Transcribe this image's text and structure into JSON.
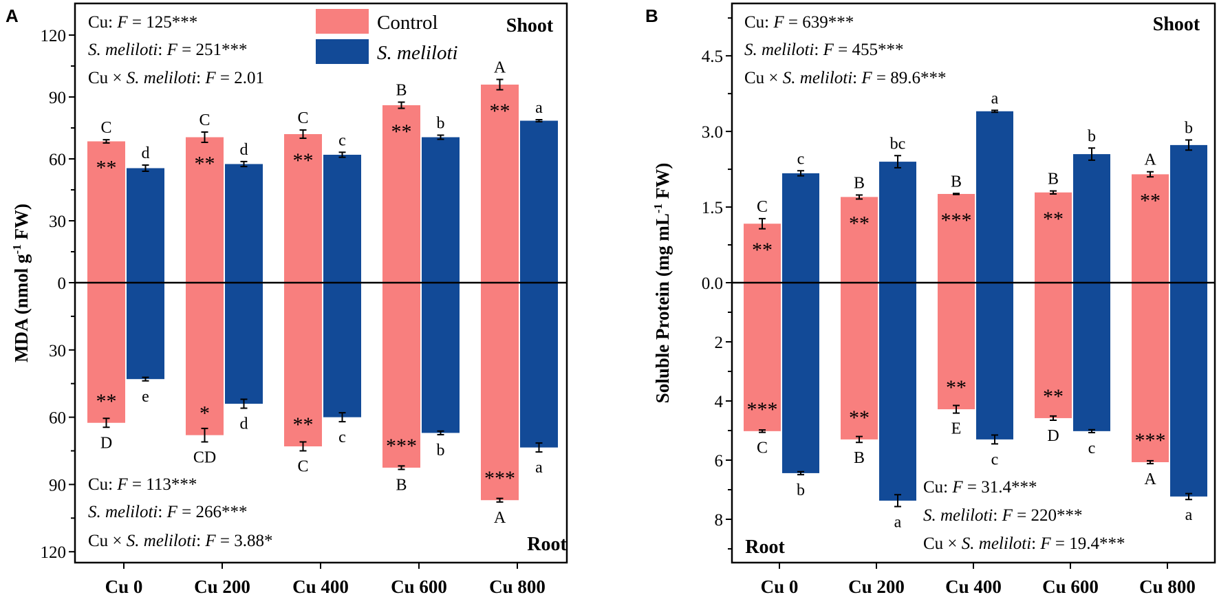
{
  "colors": {
    "control": "#f87f7e",
    "inoculated": "#124a97",
    "axis": "#000000"
  },
  "chart_data": [
    {
      "panel_label": "A",
      "type": "bar",
      "categories": [
        "Cu 0",
        "Cu 200",
        "Cu 400",
        "Cu 600",
        "Cu 800"
      ],
      "ylabel": {
        "main": "MDA (nmol g",
        "sup": "-1",
        "tail": " FW)"
      },
      "legend": {
        "placement": "top-center",
        "entries": [
          "Control",
          "S. meliloti"
        ]
      },
      "shoot": {
        "label": "Shoot",
        "ylim": [
          0,
          135
        ],
        "ticks": [
          {
            "v": 0,
            "t": "0"
          },
          {
            "v": 30,
            "t": "30"
          },
          {
            "v": 60,
            "t": "60"
          },
          {
            "v": 90,
            "t": "90"
          },
          {
            "v": 120,
            "t": "120"
          }
        ],
        "minor": [
          15,
          45,
          75,
          105
        ],
        "series": [
          {
            "name": "Control",
            "values": [
              68.5,
              70.5,
              72,
              86,
              96
            ],
            "errors": [
              0.8,
              2.5,
              2,
              1.5,
              2.5
            ],
            "letters": [
              "C",
              "C",
              "C",
              "B",
              "A"
            ],
            "stars": [
              "**",
              "**",
              "**",
              "**",
              "**"
            ]
          },
          {
            "name": "S. meliloti",
            "values": [
              55.5,
              57.5,
              62,
              70.5,
              78.5
            ],
            "errors": [
              1.5,
              1.2,
              1.2,
              1,
              0.5
            ],
            "letters": [
              "d",
              "d",
              "c",
              "b",
              "a"
            ],
            "stars": [
              "",
              "",
              "",
              "",
              ""
            ]
          }
        ],
        "stats": [
          [
            "Cu: ",
            "F",
            " = 125***"
          ],
          [
            "",
            "S. meliloti",
            ": ",
            "F",
            " = 251***"
          ],
          [
            "Cu × ",
            "S. meliloti",
            ": ",
            "F",
            " = 2.01"
          ]
        ]
      },
      "root": {
        "label": "Root",
        "ylim": [
          0,
          125
        ],
        "ticks": [
          {
            "v": 30,
            "t": "30"
          },
          {
            "v": 60,
            "t": "60"
          },
          {
            "v": 90,
            "t": "90"
          },
          {
            "v": 120,
            "t": "120"
          }
        ],
        "minor": [
          15,
          45,
          75,
          105
        ],
        "series": [
          {
            "name": "Control",
            "values": [
              62.5,
              68,
              73,
              82.5,
              97
            ],
            "errors": [
              2,
              3,
              2,
              0.8,
              0.8
            ],
            "letters": [
              "D",
              "CD",
              "C",
              "B",
              "A"
            ],
            "stars": [
              "**",
              "*",
              "**",
              "***",
              "***"
            ]
          },
          {
            "name": "S. meliloti",
            "values": [
              43,
              54,
              60,
              67,
              73.5
            ],
            "errors": [
              0.8,
              2,
              2,
              0.8,
              2
            ],
            "letters": [
              "e",
              "d",
              "c",
              "b",
              "a"
            ],
            "stars": [
              "",
              "",
              "",
              "",
              ""
            ]
          }
        ],
        "stats": [
          [
            "Cu: ",
            "F",
            " = 113***"
          ],
          [
            "",
            "S. meliloti",
            ": ",
            "F",
            " = 266***"
          ],
          [
            "Cu × ",
            "S. meliloti",
            ": ",
            "F",
            " = 3.88*"
          ]
        ]
      }
    },
    {
      "panel_label": "B",
      "type": "bar",
      "categories": [
        "Cu 0",
        "Cu 200",
        "Cu 400",
        "Cu 600",
        "Cu 800"
      ],
      "ylabel": {
        "main": "Soluble Protein (mg mL",
        "sup": "-1",
        "tail": " FW)"
      },
      "shoot": {
        "label": "Shoot",
        "ylim": [
          0,
          5.5
        ],
        "ticks": [
          {
            "v": 0,
            "t": "0.0"
          },
          {
            "v": 1.5,
            "t": "1.5"
          },
          {
            "v": 3.0,
            "t": "3.0"
          },
          {
            "v": 4.5,
            "t": "4.5"
          }
        ],
        "minor": [
          0.75,
          2.25,
          3.75,
          5.25
        ],
        "series": [
          {
            "name": "Control",
            "values": [
              1.17,
              1.7,
              1.76,
              1.79,
              2.15
            ],
            "errors": [
              0.1,
              0.04,
              0.01,
              0.03,
              0.05
            ],
            "letters": [
              "C",
              "B",
              "B",
              "B",
              "A"
            ],
            "stars": [
              "**",
              "**",
              "***",
              "**",
              "**"
            ]
          },
          {
            "name": "S. meliloti",
            "values": [
              2.17,
              2.4,
              3.4,
              2.55,
              2.73
            ],
            "errors": [
              0.05,
              0.12,
              0.02,
              0.12,
              0.1
            ],
            "letters": [
              "c",
              "bc",
              "a",
              "b",
              "b"
            ],
            "stars": [
              "",
              "",
              "",
              "",
              ""
            ]
          }
        ],
        "stats": [
          [
            "Cu: ",
            "F",
            " = 639***"
          ],
          [
            "",
            "S. meliloti",
            ": ",
            "F",
            " = 455***"
          ],
          [
            "Cu × ",
            "S. meliloti",
            ": ",
            "F",
            " = 89.6***"
          ]
        ]
      },
      "root": {
        "label": "Root",
        "ylim": [
          0,
          9.5
        ],
        "ticks": [
          {
            "v": 2,
            "t": "2"
          },
          {
            "v": 4,
            "t": "4"
          },
          {
            "v": 6,
            "t": "6"
          },
          {
            "v": 8,
            "t": "8"
          }
        ],
        "minor": [
          1,
          3,
          5,
          7,
          9
        ],
        "series": [
          {
            "name": "Control",
            "values": [
              5.02,
              5.3,
              4.28,
              4.58,
              6.07
            ],
            "errors": [
              0.04,
              0.1,
              0.13,
              0.07,
              0.05
            ],
            "letters": [
              "C",
              "B",
              "E",
              "D",
              "A"
            ],
            "stars": [
              "***",
              "**",
              "**",
              "**",
              "***"
            ]
          },
          {
            "name": "S. meliloti",
            "values": [
              6.44,
              7.37,
              5.3,
              5.02,
              7.23
            ],
            "errors": [
              0.05,
              0.2,
              0.15,
              0.05,
              0.1
            ],
            "letters": [
              "b",
              "a",
              "c",
              "c",
              "a"
            ],
            "stars": [
              "",
              "",
              "",
              "",
              ""
            ]
          }
        ],
        "stats": [
          [
            "Cu: ",
            "F",
            " = 31.4***"
          ],
          [
            "",
            "S. meliloti",
            ": ",
            "F",
            " = 220***"
          ],
          [
            "Cu × ",
            "S. meliloti",
            ": ",
            "F",
            " = 19.4***"
          ]
        ]
      }
    }
  ]
}
